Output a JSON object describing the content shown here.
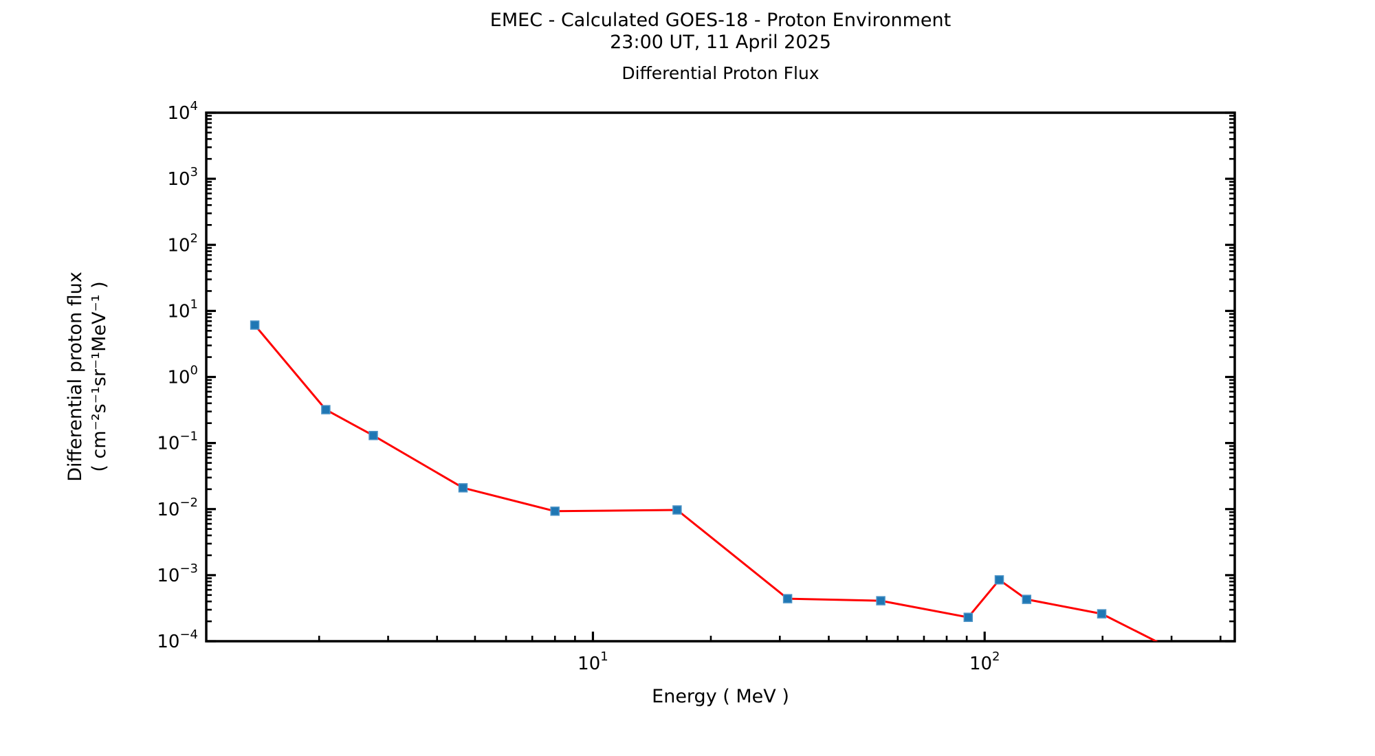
{
  "chart_data": {
    "type": "line",
    "suptitle_line1": "EMEC - Calculated GOES-18 - Proton Environment",
    "suptitle_line2": "23:00 UT, 11 April 2025",
    "title": "Differential Proton Flux",
    "xlabel": "Energy ( MeV )",
    "ylabel_line1": "Differential proton flux",
    "ylabel_line2": "( cm⁻²s⁻¹sr⁻¹MeV⁻¹ )",
    "x_scale": "log",
    "y_scale": "log",
    "xlim": [
      1.03,
      435
    ],
    "ylim": [
      0.0001,
      10000
    ],
    "x_major_tick_exponents": [
      1,
      2
    ],
    "y_major_tick_exponents": [
      4,
      3,
      2,
      1,
      0,
      -1,
      -2,
      -3,
      -4
    ],
    "grid": false,
    "legend": "none",
    "background_color": "#ffffff",
    "axis_color": "#000000",
    "series": [
      {
        "name": "Differential proton flux",
        "line_color": "#ff0000",
        "marker": "square",
        "marker_color": "#1f77b4",
        "x_mev": [
          1.37,
          2.08,
          2.75,
          4.66,
          8.0,
          16.4,
          31.4,
          54.3,
          90.8,
          109,
          128,
          199,
          345
        ],
        "y_flux": [
          6.1,
          0.32,
          0.13,
          0.021,
          0.0093,
          0.0097,
          0.00044,
          0.00041,
          0.00023,
          0.00085,
          0.00043,
          0.00026,
          5e-05
        ],
        "last_point_clipped": true
      }
    ]
  }
}
